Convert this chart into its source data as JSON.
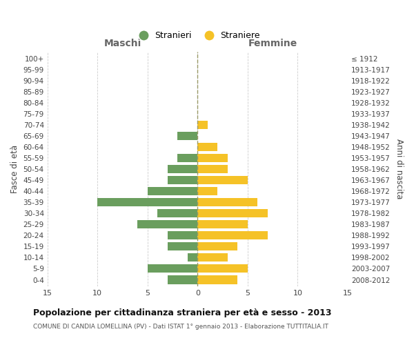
{
  "age_groups": [
    "100+",
    "95-99",
    "90-94",
    "85-89",
    "80-84",
    "75-79",
    "70-74",
    "65-69",
    "60-64",
    "55-59",
    "50-54",
    "45-49",
    "40-44",
    "35-39",
    "30-34",
    "25-29",
    "20-24",
    "15-19",
    "10-14",
    "5-9",
    "0-4"
  ],
  "birth_years": [
    "≤ 1912",
    "1913-1917",
    "1918-1922",
    "1923-1927",
    "1928-1932",
    "1933-1937",
    "1938-1942",
    "1943-1947",
    "1948-1952",
    "1953-1957",
    "1958-1962",
    "1963-1967",
    "1968-1972",
    "1973-1977",
    "1978-1982",
    "1983-1987",
    "1988-1992",
    "1993-1997",
    "1998-2002",
    "2003-2007",
    "2008-2012"
  ],
  "maschi": [
    0,
    0,
    0,
    0,
    0,
    0,
    0,
    2,
    0,
    2,
    3,
    3,
    5,
    10,
    4,
    6,
    3,
    3,
    1,
    5,
    3
  ],
  "femmine": [
    0,
    0,
    0,
    0,
    0,
    0,
    1,
    0,
    2,
    3,
    3,
    5,
    2,
    6,
    7,
    5,
    7,
    4,
    3,
    5,
    4
  ],
  "maschi_color": "#6a9e5e",
  "femmine_color": "#f5c227",
  "title": "Popolazione per cittadinanza straniera per età e sesso - 2013",
  "subtitle": "COMUNE DI CANDIA LOMELLINA (PV) - Dati ISTAT 1° gennaio 2013 - Elaborazione TUTTITALIA.IT",
  "xlabel_left": "Maschi",
  "xlabel_right": "Femmine",
  "ylabel_left": "Fasce di età",
  "ylabel_right": "Anni di nascita",
  "xlim": 15,
  "legend_labels": [
    "Stranieri",
    "Straniere"
  ],
  "background_color": "#ffffff",
  "grid_color": "#cccccc",
  "center_line_color": "#999966"
}
